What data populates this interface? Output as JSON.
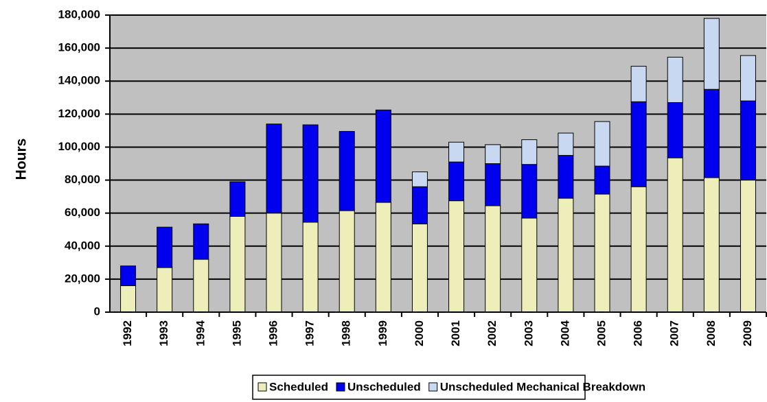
{
  "chart_data": {
    "type": "stacked_bar",
    "y_label": "Hours",
    "categories": [
      "1992",
      "1993",
      "1994",
      "1995",
      "1996",
      "1997",
      "1998",
      "1999",
      "2000",
      "2001",
      "2002",
      "2003",
      "2004",
      "2005",
      "2006",
      "2007",
      "2008",
      "2009"
    ],
    "series": [
      {
        "name": "Scheduled",
        "color": "#eeeebb",
        "values": [
          16000,
          27000,
          32000,
          58000,
          60000,
          54500,
          61500,
          66500,
          53500,
          67500,
          64500,
          57000,
          69000,
          71500,
          76000,
          93500,
          81500,
          80000
        ]
      },
      {
        "name": "Unscheduled",
        "color": "#0000ee",
        "values": [
          12000,
          24500,
          21500,
          21000,
          54000,
          59000,
          48000,
          56000,
          22500,
          23500,
          25500,
          32500,
          26000,
          17000,
          51500,
          33500,
          53500,
          48000
        ]
      },
      {
        "name": "Unscheduled Mechanical Breakdown",
        "color": "#c8d8f0",
        "values": [
          0,
          0,
          0,
          0,
          0,
          0,
          0,
          0,
          9000,
          12000,
          11500,
          15000,
          13500,
          27000,
          21500,
          27500,
          43000,
          27500
        ]
      }
    ],
    "ylim": [
      0,
      180000
    ],
    "yticks": [
      0,
      {
        "value": 20000,
        "label": "20,000"
      },
      {
        "value": 40000,
        "label": "40,000"
      },
      {
        "value": 60000,
        "label": "60,000"
      },
      {
        "value": 80000,
        "label": "80,000"
      },
      {
        "value": 100000,
        "label": "100,000"
      },
      {
        "value": 120000,
        "label": "120,000"
      },
      {
        "value": 140000,
        "label": "140,000"
      },
      {
        "value": 160000,
        "label": "160,000"
      },
      {
        "value": 180000,
        "label": "180,000"
      }
    ],
    "grid": true,
    "legend": "bottom"
  }
}
